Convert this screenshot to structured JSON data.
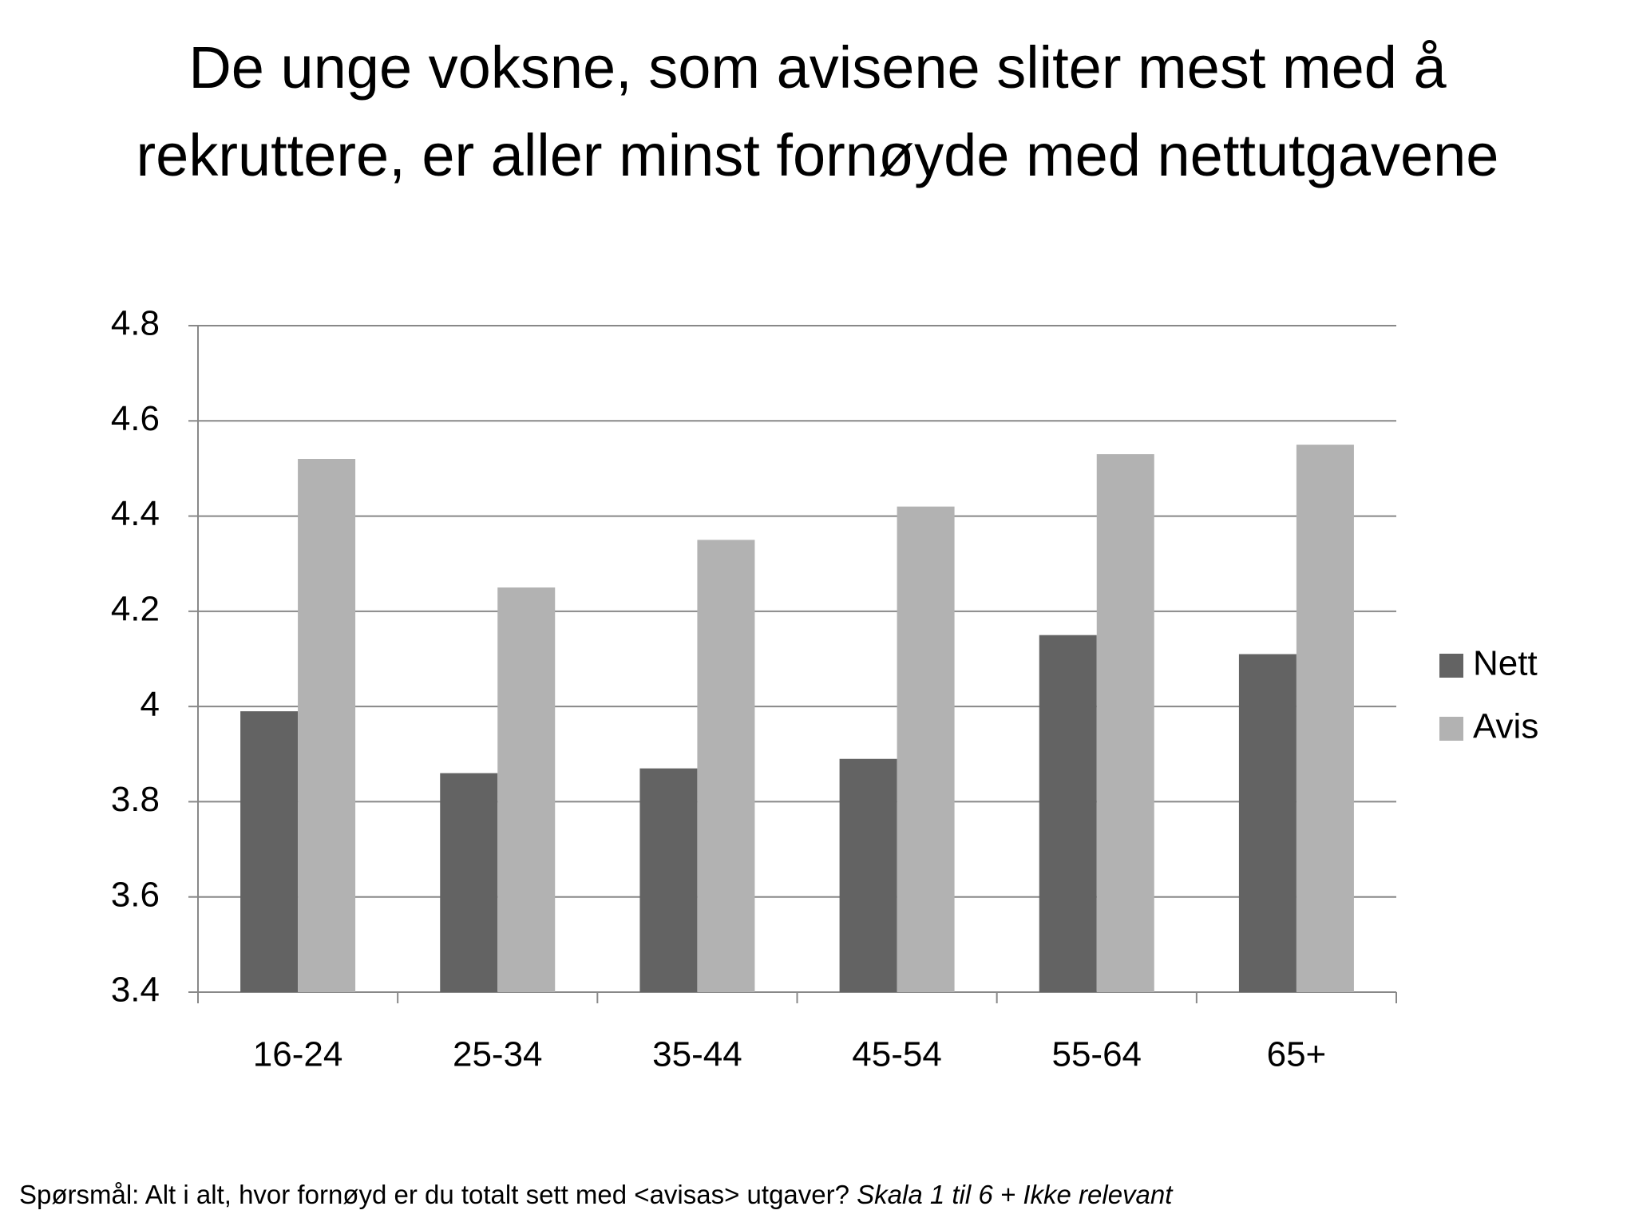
{
  "chart_data": {
    "type": "bar",
    "title": "De unge voksne, som avisene sliter mest med å rekruttere, er aller minst fornøyde med nettutgavene",
    "footnote": [
      "Spørsmål: Alt i alt, hvor fornøyd er du totalt sett med <avisas> utgaver?",
      "Skala 1 til 6 + Ikke relevant"
    ],
    "categories": [
      "16-24",
      "25-34",
      "35-44",
      "45-54",
      "55-64",
      "65+"
    ],
    "series": [
      {
        "name": "Nett",
        "color": "#636363",
        "values": [
          3.99,
          3.86,
          3.87,
          3.89,
          4.15,
          4.11
        ]
      },
      {
        "name": "Avis",
        "color": "#b2b2b2",
        "values": [
          4.52,
          4.25,
          4.35,
          4.42,
          4.53,
          4.55
        ]
      }
    ],
    "ylim": [
      3.4,
      4.8
    ],
    "yticks": [
      3.4,
      3.6,
      3.8,
      4,
      4.2,
      4.4,
      4.6,
      4.8
    ],
    "grid": true,
    "legend": "right"
  }
}
